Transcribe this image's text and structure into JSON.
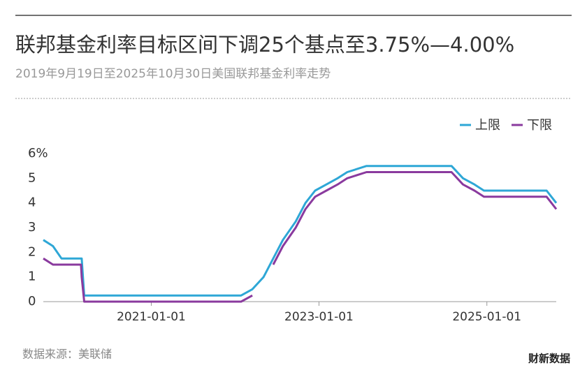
{
  "chart_data": {
    "type": "line",
    "title": "联邦基金利率目标区间下调25个基点至3.75%—4.00%",
    "subtitle": "2019年9月19日至2025年10月30日美国联邦基金利率走势",
    "source": "数据来源：美联储",
    "brand": "财新数据",
    "x": [
      "2019-09-19",
      "2019-10-31",
      "2019-12-07",
      "2020-03-01",
      "2020-03-04",
      "2020-03-15",
      "2022-01-27",
      "2022-03-17",
      "2022-05-05",
      "2022-06-16",
      "2022-07-28",
      "2022-09-22",
      "2022-11-03",
      "2022-12-15",
      "2023-02-02",
      "2023-03-23",
      "2023-05-04",
      "2023-07-27",
      "2024-07-31",
      "2024-09-19",
      "2024-11-08",
      "2024-12-19",
      "2025-09-18",
      "2025-10-30"
    ],
    "series": [
      {
        "name": "上限",
        "color": "#2ea7d6",
        "values": [
          2.5,
          2.25,
          1.75,
          1.75,
          1.75,
          0.25,
          0.25,
          0.5,
          1.0,
          1.75,
          2.5,
          3.25,
          4.0,
          4.5,
          4.75,
          5.0,
          5.25,
          5.5,
          5.5,
          5.0,
          4.75,
          4.5,
          4.5,
          4.0
        ]
      },
      {
        "name": "下限",
        "color": "#8a3a9e",
        "values": [
          1.75,
          1.5,
          1.5,
          1.5,
          1.0,
          0,
          0,
          0.25,
          null,
          1.5,
          2.25,
          3.0,
          3.75,
          4.25,
          4.5,
          4.75,
          5.0,
          5.25,
          5.25,
          4.75,
          4.5,
          4.25,
          4.25,
          3.75
        ]
      }
    ],
    "xlim": [
      "2019-09-19",
      "2025-10-30"
    ],
    "xticks": [
      "2021-01-01",
      "2023-01-01",
      "2025-01-01"
    ],
    "ylim": [
      0,
      6
    ],
    "yticks": [
      0,
      1,
      2,
      3,
      4,
      5,
      {
        "value": 6,
        "label": "6%"
      }
    ],
    "legend": "top-right"
  }
}
